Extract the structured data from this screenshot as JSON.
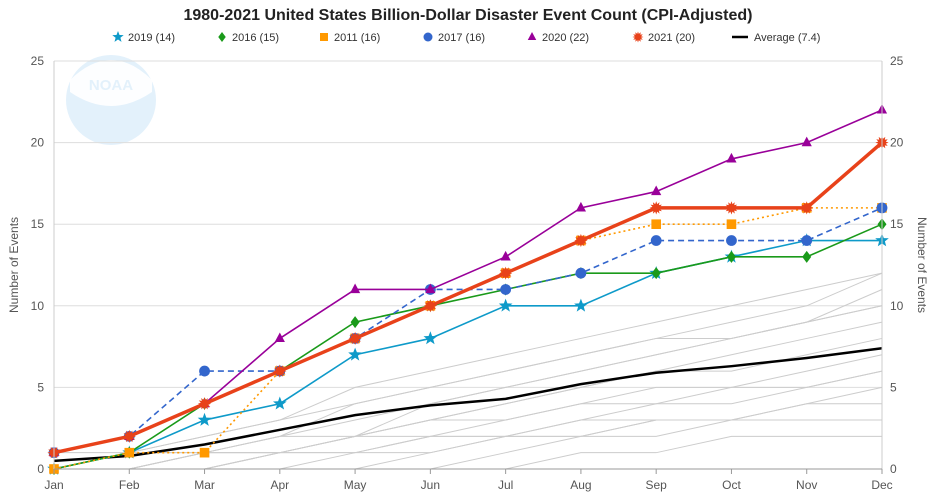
{
  "chart_data": {
    "type": "line",
    "title": "1980-2021 United States Billion-Dollar Disaster Event Count (CPI-Adjusted)",
    "categories": [
      "Jan",
      "Feb",
      "Mar",
      "Apr",
      "May",
      "Jun",
      "Jul",
      "Aug",
      "Sep",
      "Oct",
      "Nov",
      "Dec"
    ],
    "ylabel": "Number of Events",
    "ylabel_right": "Number of Events",
    "ylim": [
      0,
      25
    ],
    "yticks": [
      0,
      5,
      10,
      15,
      20,
      25
    ],
    "grid": true,
    "legend_position": "top",
    "series": [
      {
        "name": "2019 (14)",
        "color": "#0e9ac9",
        "marker": "star",
        "dash": "solid",
        "values": [
          0,
          1,
          3,
          4,
          7,
          8,
          10,
          10,
          12,
          13,
          14,
          14
        ]
      },
      {
        "name": "2016 (15)",
        "color": "#1a9a1a",
        "marker": "diamond",
        "dash": "solid",
        "values": [
          0,
          1,
          4,
          6,
          9,
          10,
          11,
          12,
          12,
          13,
          13,
          15
        ]
      },
      {
        "name": "2011 (16)",
        "color": "#ff9900",
        "marker": "square",
        "dash": "dotted",
        "values": [
          0,
          1,
          1,
          6,
          8,
          10,
          12,
          14,
          15,
          15,
          16,
          16
        ]
      },
      {
        "name": "2017 (16)",
        "color": "#3366cc",
        "marker": "circle",
        "dash": "dashed",
        "values": [
          1,
          2,
          6,
          6,
          8,
          11,
          11,
          12,
          14,
          14,
          14,
          16
        ]
      },
      {
        "name": "2020 (22)",
        "color": "#990099",
        "marker": "triangle",
        "dash": "solid",
        "values": [
          1,
          2,
          4,
          8,
          11,
          11,
          13,
          16,
          17,
          19,
          20,
          22
        ]
      },
      {
        "name": "2021 (20)",
        "color": "#e8421a",
        "marker": "burst",
        "dash": "solid",
        "values": [
          1,
          2,
          4,
          6,
          8,
          10,
          12,
          14,
          16,
          16,
          16,
          20
        ]
      },
      {
        "name": "Average (7.4)",
        "color": "#000000",
        "marker": "none",
        "dash": "solid",
        "values": [
          0.5,
          0.8,
          1.5,
          2.4,
          3.3,
          3.9,
          4.3,
          5.2,
          5.9,
          6.3,
          6.8,
          7.4
        ]
      }
    ],
    "background_series_color": "#cccccc",
    "background_series": [
      [
        0,
        0,
        0,
        1,
        2,
        3,
        4,
        5,
        6,
        7,
        8,
        9
      ],
      [
        0,
        0,
        1,
        2,
        3,
        4,
        5,
        6,
        7,
        8,
        9,
        10
      ],
      [
        0,
        1,
        2,
        3,
        4,
        5,
        6,
        7,
        8,
        8,
        9,
        11
      ],
      [
        0,
        0,
        1,
        1,
        2,
        3,
        4,
        5,
        6,
        6,
        7,
        8
      ],
      [
        0,
        0,
        0,
        0,
        1,
        2,
        3,
        4,
        5,
        5,
        6,
        7
      ],
      [
        0,
        0,
        0,
        0,
        0,
        1,
        2,
        3,
        4,
        4,
        5,
        6
      ],
      [
        0,
        0,
        0,
        0,
        0,
        0,
        1,
        2,
        3,
        3,
        4,
        5
      ],
      [
        0,
        1,
        1,
        2,
        2,
        3,
        3,
        4,
        4,
        5,
        5,
        6
      ],
      [
        0,
        0,
        1,
        1,
        1,
        2,
        2,
        3,
        3,
        3,
        4,
        4
      ],
      [
        0,
        0,
        0,
        1,
        1,
        1,
        2,
        2,
        2,
        3,
        3,
        3
      ],
      [
        1,
        1,
        1,
        1,
        2,
        2,
        2,
        2,
        3,
        3,
        3,
        3
      ],
      [
        0,
        0,
        0,
        0,
        0,
        0,
        0,
        1,
        1,
        2,
        2,
        2
      ],
      [
        0,
        0,
        1,
        2,
        4,
        5,
        6,
        7,
        8,
        9,
        10,
        12
      ],
      [
        0,
        1,
        2,
        3,
        5,
        6,
        7,
        8,
        9,
        10,
        11,
        12
      ],
      [
        0,
        0,
        0,
        1,
        2,
        4,
        5,
        6,
        7,
        8,
        9,
        10
      ]
    ]
  },
  "logo": {
    "text": "NOAA"
  }
}
